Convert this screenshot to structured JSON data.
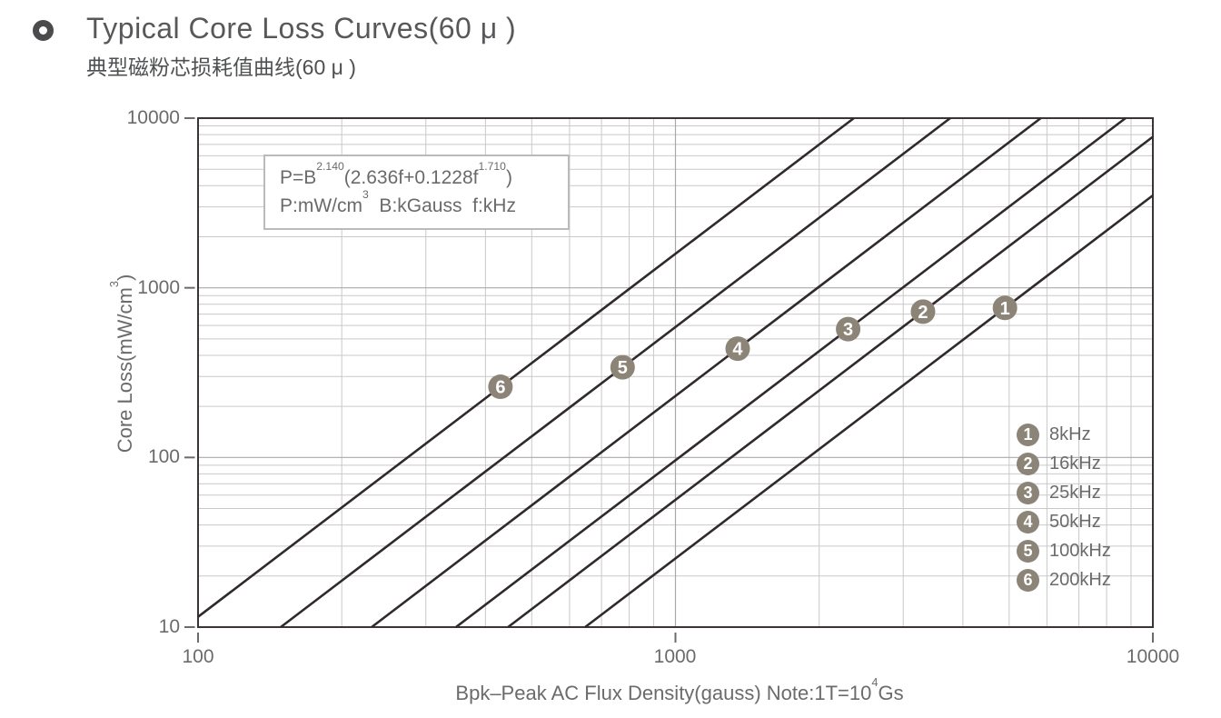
{
  "header": {
    "title": "Typical Core Loss Curves(60 μ )",
    "subtitle": "典型磁粉芯损耗值曲线(60 μ )"
  },
  "formula_box": {
    "line1": {
      "p1": "P=B",
      "sup1": "2.140",
      "p2": "(2.636f+0.1228f",
      "sup2": "1.710",
      "p3": ")"
    },
    "line2": {
      "p1": "P:mW/cm",
      "sup1": "3",
      "p2": "  B:kGauss  f:kHz"
    }
  },
  "chart_data": {
    "type": "line",
    "title": "Typical Core Loss Curves(60 μ )",
    "x_axis": {
      "scale": "log",
      "min": 100,
      "max": 10000,
      "tick_values": [
        100,
        1000,
        10000
      ],
      "tick_labels": [
        "100",
        "1000",
        "10000"
      ],
      "label_parts": {
        "p1": "Bpk–Peak AC Flux Density(gauss) Note:1T=10",
        "sup": "4",
        "p2": "Gs"
      }
    },
    "y_axis": {
      "scale": "log",
      "min": 10,
      "max": 10000,
      "tick_values": [
        10,
        100,
        1000,
        10000
      ],
      "tick_labels": [
        "10",
        "100",
        "1000",
        "10000"
      ],
      "label_parts": {
        "p1": "Core Loss(mW/cm",
        "sup": "3",
        "p2": ")"
      }
    },
    "grid": "log-minor-on",
    "legend_position": "inside-bottom-right",
    "model": {
      "formula": "P=B^2.140(2.636f+0.1228f^1.710)",
      "units": "P:mW/cm3 B:kGauss f:kHz",
      "b_exponent": 2.14,
      "f_coeff": 2.636,
      "f2_coeff": 0.1228,
      "f_exponent": 1.71
    },
    "series": [
      {
        "id": "1",
        "label": "8kHz",
        "f_khz": 8,
        "points_gauss_mw": [
          [
            647,
            10
          ],
          [
            4900,
            761
          ],
          [
            10000,
            3505
          ]
        ],
        "marker_at": [
          4900,
          761
        ]
      },
      {
        "id": "2",
        "label": "16kHz",
        "f_khz": 16,
        "points_gauss_mw": [
          [
            446,
            10
          ],
          [
            3300,
            724
          ],
          [
            10000,
            7764
          ]
        ],
        "marker_at": [
          3300,
          724
        ]
      },
      {
        "id": "3",
        "label": "25kHz",
        "f_khz": 25,
        "points_gauss_mw": [
          [
            347,
            10
          ],
          [
            2300,
            571
          ],
          [
            8765,
            10000
          ]
        ],
        "marker_at": [
          2300,
          571
        ]
      },
      {
        "id": "4",
        "label": "50kHz",
        "f_khz": 50,
        "points_gauss_mw": [
          [
            231,
            10
          ],
          [
            1350,
            438
          ],
          [
            5823,
            10000
          ]
        ],
        "marker_at": [
          1350,
          438
        ]
      },
      {
        "id": "5",
        "label": "100kHz",
        "f_khz": 100,
        "points_gauss_mw": [
          [
            149,
            10
          ],
          [
            775,
            340
          ],
          [
            3763,
            10000
          ]
        ],
        "marker_at": [
          775,
          340
        ]
      },
      {
        "id": "6",
        "label": "200kHz",
        "f_khz": 200,
        "points_gauss_mw": [
          [
            100,
            11.5
          ],
          [
            430,
            261
          ],
          [
            2365,
            10000
          ]
        ],
        "marker_at": [
          430,
          261
        ]
      }
    ],
    "colors": {
      "curve": "#312a2c",
      "marker_fill": "#8d8478",
      "marker_text": "#ffffff",
      "grid_minor": "#c9c9c9",
      "grid_major": "#a9a9a9",
      "frame": "#3b3436",
      "text": "#6b6b6b",
      "title": "#57585a"
    }
  }
}
